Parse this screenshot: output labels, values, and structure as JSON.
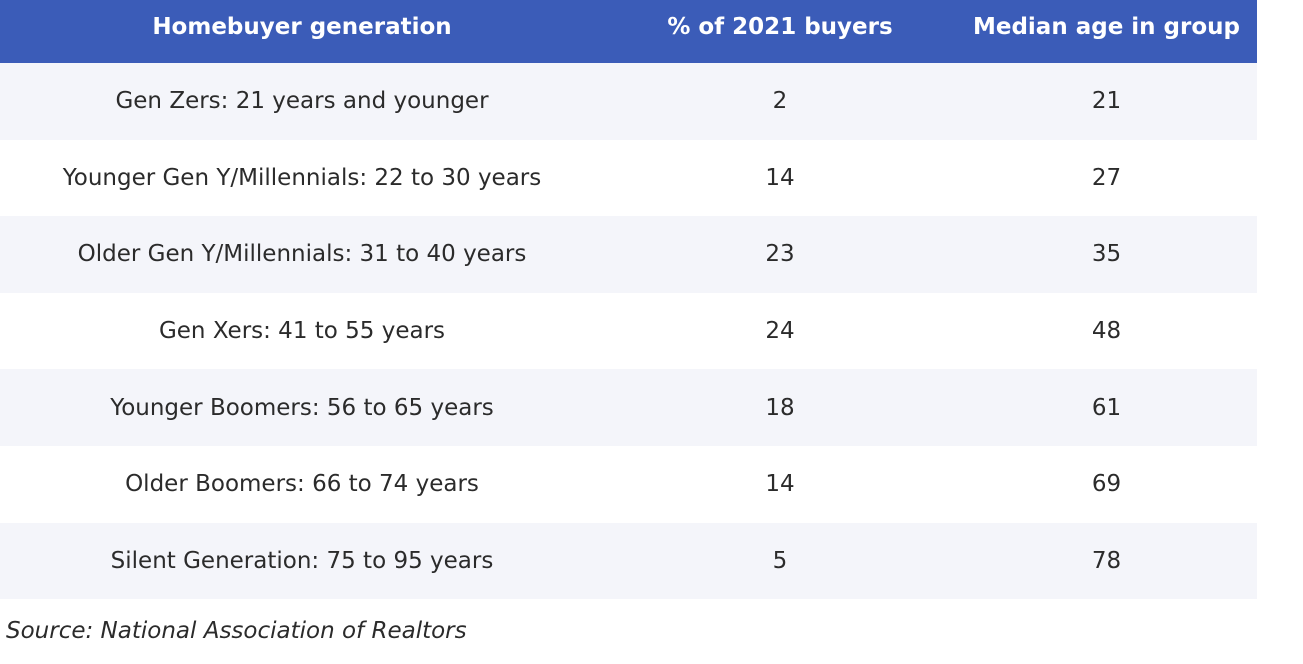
{
  "table": {
    "headers": [
      "Homebuyer generation",
      "% of 2021 buyers",
      "Median age in group"
    ],
    "rows": [
      [
        "Gen Zers: 21 years and younger",
        "2",
        "21"
      ],
      [
        "Younger Gen Y/Millennials: 22 to 30 years",
        "14",
        "27"
      ],
      [
        "Older Gen Y/Millennials: 31 to 40 years",
        "23",
        "35"
      ],
      [
        "Gen Xers: 41 to 55 years",
        "24",
        "48"
      ],
      [
        "Younger Boomers: 56 to 65 years",
        "18",
        "61"
      ],
      [
        "Older Boomers: 66 to 74 years",
        "14",
        "69"
      ],
      [
        "Silent Generation: 75 to 95 years",
        "5",
        "78"
      ]
    ]
  },
  "source": "Source: National Association of Realtors",
  "colors": {
    "header_bg": "#3b5cb8",
    "header_text": "#ffffff",
    "row_alt_bg": "#f4f5fa",
    "row_bg": "#ffffff"
  }
}
